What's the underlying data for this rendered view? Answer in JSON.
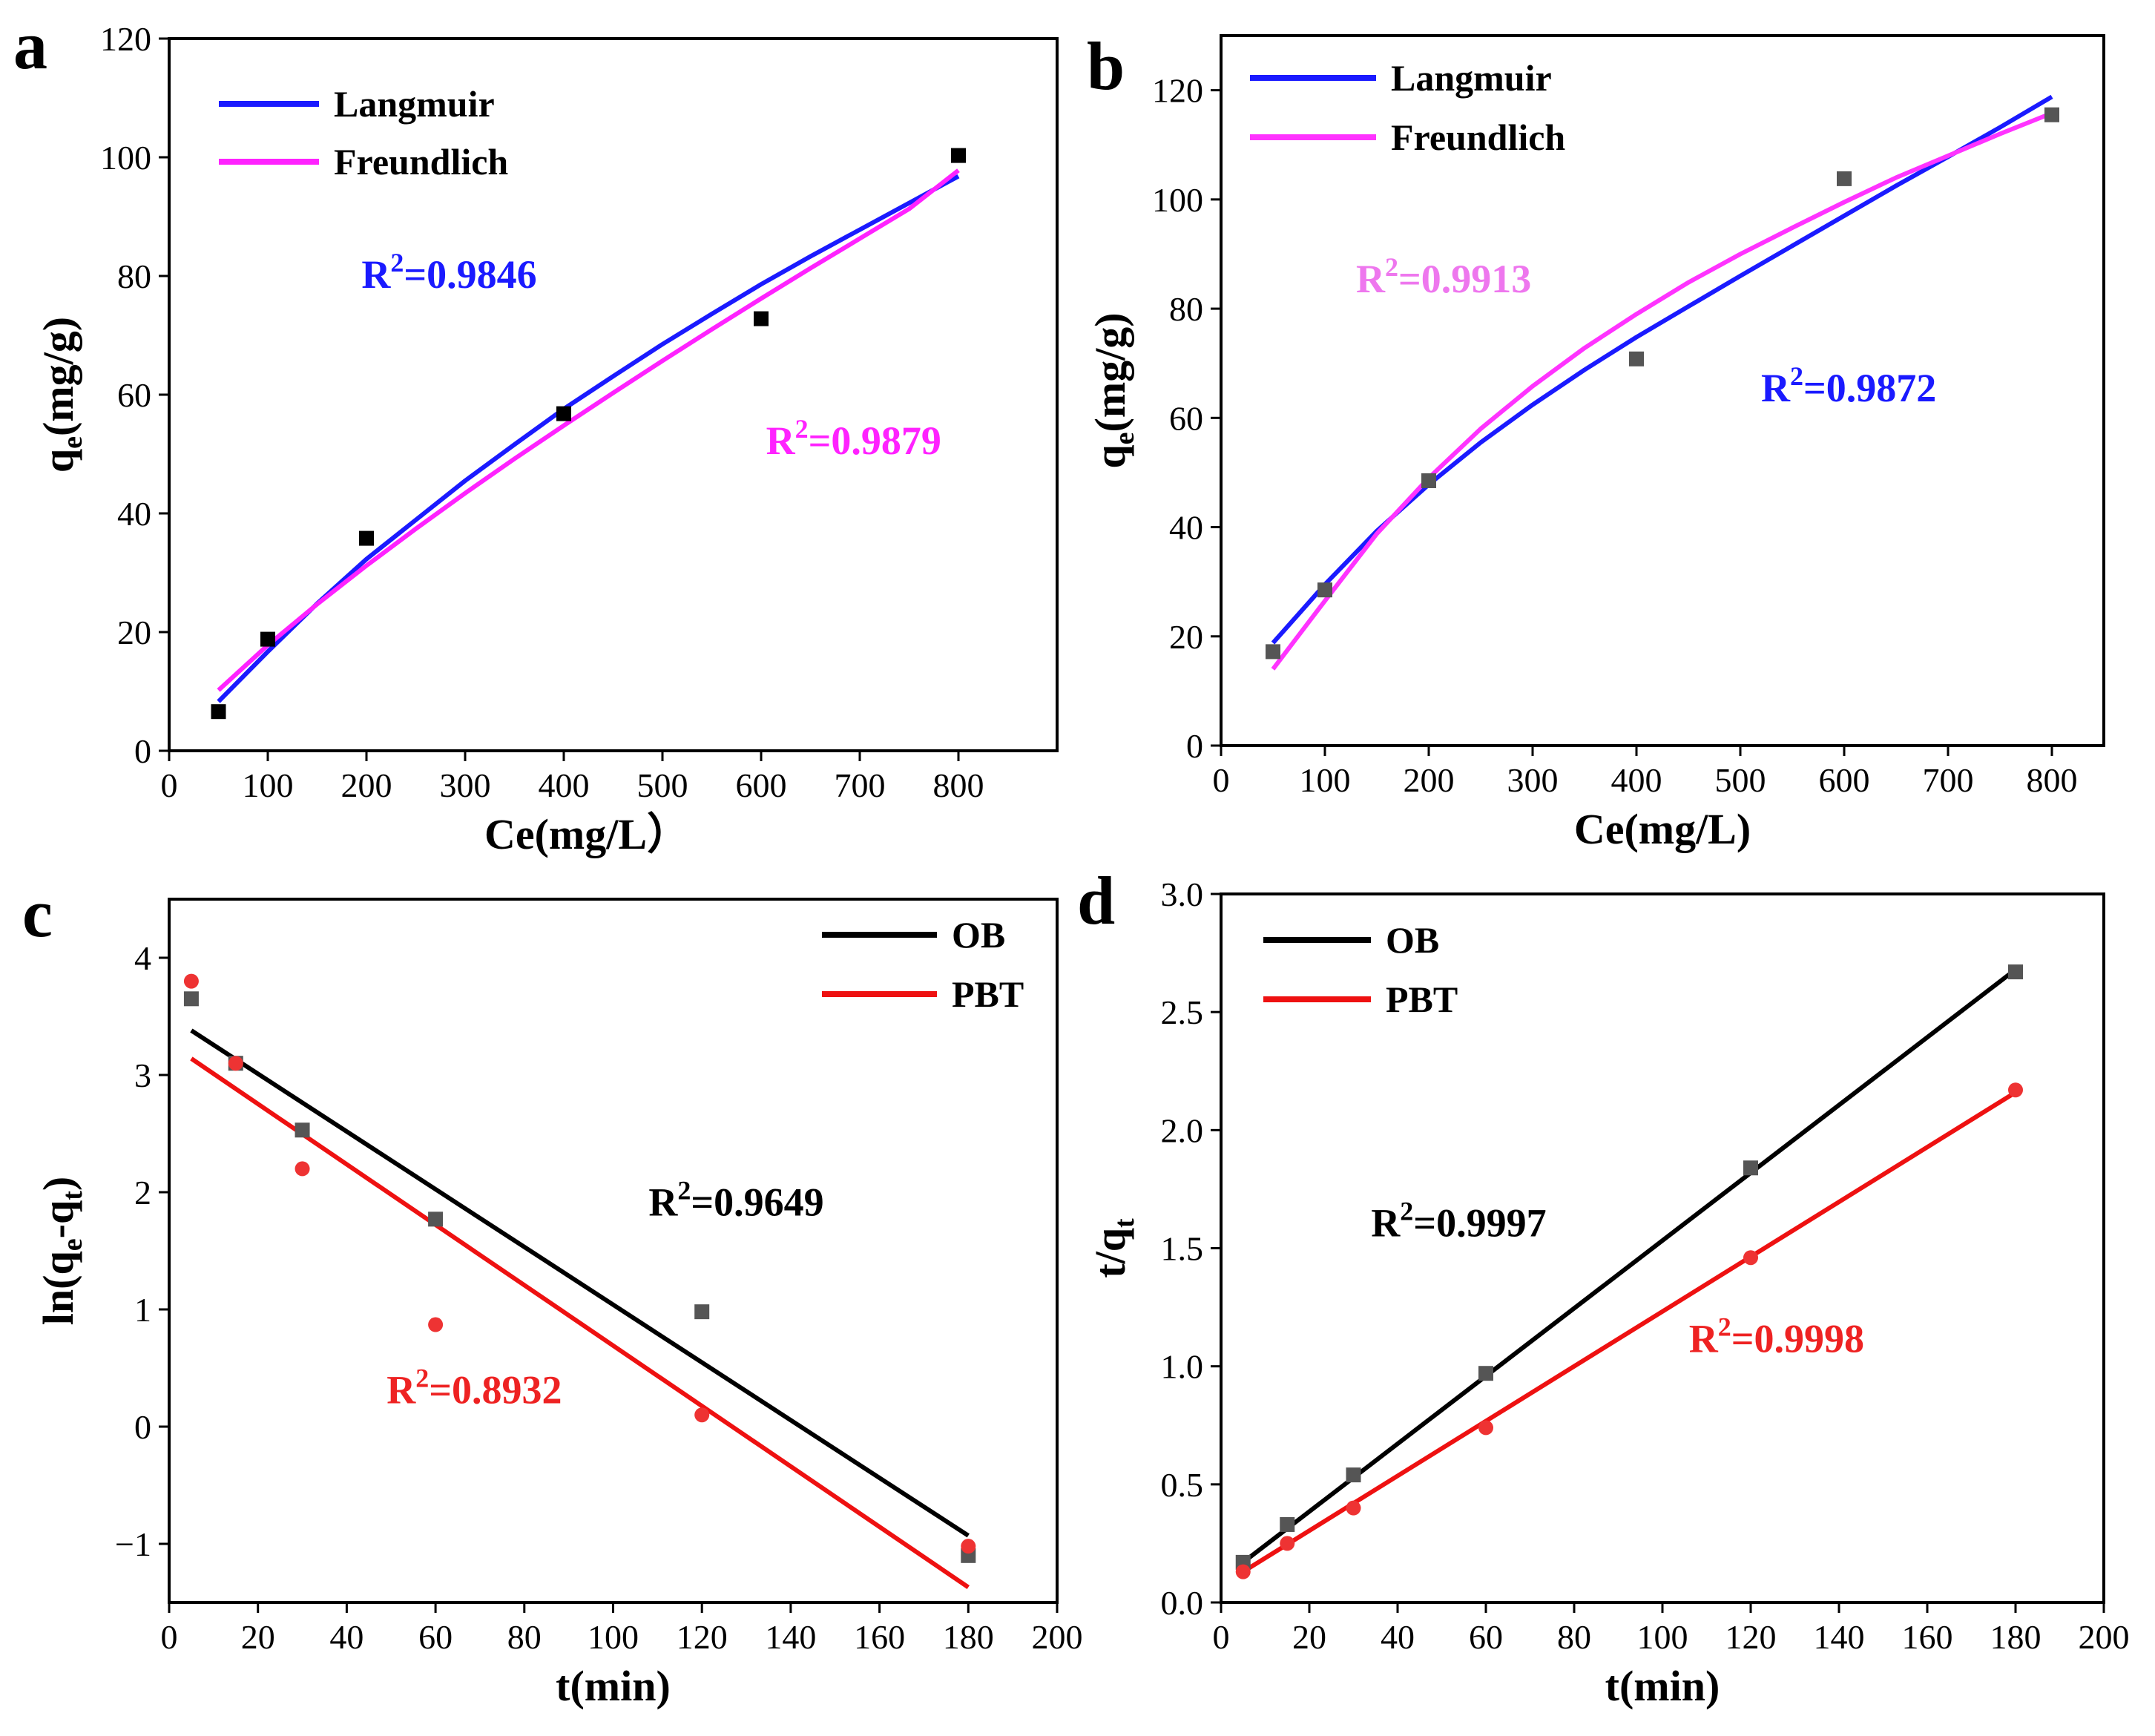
{
  "figure": {
    "panels": [
      "a",
      "b",
      "c",
      "d"
    ]
  },
  "chart_data": [
    {
      "id": "a",
      "panel_label": "a",
      "type": "scatter",
      "xlabel": "Ce(mg/L）",
      "ylabel_main": "q",
      "ylabel_sub": "e",
      "ylabel_rest": "(mg/g)",
      "xlim": [
        0,
        900
      ],
      "ylim": [
        0,
        120
      ],
      "xticks": [
        0,
        100,
        200,
        300,
        400,
        500,
        600,
        700,
        800
      ],
      "yticks": [
        0,
        20,
        40,
        60,
        80,
        100,
        120
      ],
      "legend_position": "top-left",
      "points": [
        {
          "name": "data",
          "color": "#000000",
          "marker": "square",
          "x": [
            50,
            100,
            200,
            400,
            600,
            800
          ],
          "y": [
            6.6,
            18.8,
            35.8,
            56.8,
            72.8,
            100.3
          ]
        }
      ],
      "series": [
        {
          "name": "Langmuir",
          "color": "#1a1aff",
          "x": [
            50,
            100,
            150,
            200,
            250,
            300,
            350,
            400,
            450,
            500,
            550,
            600,
            650,
            700,
            750,
            800
          ],
          "y": [
            8.3,
            16.7,
            24.8,
            32.3,
            38.9,
            45.5,
            51.6,
            57.6,
            63.1,
            68.5,
            73.6,
            78.6,
            83.3,
            87.8,
            92.3,
            96.8
          ]
        },
        {
          "name": "Freundlich",
          "color": "#ff22ff",
          "x": [
            50,
            100,
            150,
            200,
            250,
            300,
            350,
            400,
            450,
            500,
            550,
            600,
            650,
            700,
            750,
            800
          ],
          "y": [
            10.2,
            17.8,
            24.7,
            31.2,
            37.4,
            43.4,
            49.2,
            54.8,
            60.3,
            65.7,
            71.0,
            76.2,
            81.3,
            86.3,
            91.3,
            97.8
          ]
        }
      ],
      "annotations": [
        {
          "text": "R",
          "sup": "2",
          "rest": "=0.9846",
          "color": "#1a1aff",
          "x": 195,
          "y": 78
        },
        {
          "text": "R",
          "sup": "2",
          "rest": "=0.9879",
          "color": "#ff22ff",
          "x": 605,
          "y": 50
        }
      ]
    },
    {
      "id": "b",
      "panel_label": "b",
      "type": "scatter",
      "xlabel": "Ce(mg/L)",
      "ylabel_main": "q",
      "ylabel_sub": "e",
      "ylabel_rest": "(mg/g)",
      "xlim": [
        0,
        850
      ],
      "ylim": [
        0,
        130
      ],
      "xticks": [
        0,
        100,
        200,
        300,
        400,
        500,
        600,
        700,
        800
      ],
      "yticks": [
        0,
        20,
        40,
        60,
        80,
        100,
        120
      ],
      "legend_position": "top-left",
      "points": [
        {
          "name": "data",
          "color": "#555555",
          "marker": "square",
          "x": [
            50,
            100,
            200,
            400,
            600,
            800
          ],
          "y": [
            17.2,
            28.5,
            48.5,
            70.8,
            103.8,
            115.5
          ]
        }
      ],
      "series": [
        {
          "name": "Langmuir",
          "color": "#1a1aff",
          "x": [
            50,
            100,
            150,
            200,
            250,
            300,
            350,
            400,
            450,
            500,
            550,
            600,
            650,
            700,
            750,
            800
          ],
          "y": [
            18.8,
            29.5,
            39.3,
            47.8,
            55.5,
            62.4,
            68.8,
            74.8,
            80.4,
            86.0,
            91.5,
            97.0,
            102.5,
            107.8,
            113.2,
            118.8
          ]
        },
        {
          "name": "Freundlich",
          "color": "#ff33ff",
          "x": [
            50,
            100,
            150,
            200,
            250,
            300,
            350,
            400,
            450,
            500,
            550,
            600,
            650,
            700,
            750,
            800
          ],
          "y": [
            14.0,
            26.5,
            38.8,
            49.0,
            58.0,
            65.8,
            72.8,
            79.0,
            84.8,
            90.0,
            94.8,
            99.5,
            104.0,
            108.0,
            112.0,
            115.8
          ]
        }
      ],
      "annotations": [
        {
          "text": "R",
          "sup": "2",
          "rest": "=0.9913",
          "color": "#ee77ee",
          "x": 130,
          "y": 83
        },
        {
          "text": "R",
          "sup": "2",
          "rest": "=0.9872",
          "color": "#1a1aff",
          "x": 520,
          "y": 63
        }
      ]
    },
    {
      "id": "c",
      "panel_label": "c",
      "type": "scatter",
      "xlabel": "t(min)",
      "ylabel_main": "ln(q",
      "ylabel_sub": "e",
      "ylabel_mid": "-q",
      "ylabel_sub2": "t",
      "ylabel_rest": ")",
      "xlim": [
        0,
        200
      ],
      "ylim": [
        -1.5,
        4.5
      ],
      "xticks": [
        0,
        20,
        40,
        60,
        80,
        100,
        120,
        140,
        160,
        180,
        200
      ],
      "yticks": [
        -1,
        0,
        1,
        2,
        3,
        4
      ],
      "ytick_labels": [
        "−1",
        "0",
        "1",
        "2",
        "3",
        "4"
      ],
      "legend_position": "top-right",
      "points": [
        {
          "name": "OB data",
          "color": "#555555",
          "marker": "square",
          "x": [
            5,
            15,
            30,
            60,
            120,
            180
          ],
          "y": [
            3.65,
            3.1,
            2.53,
            1.77,
            0.98,
            -1.1
          ]
        },
        {
          "name": "PBT data",
          "color": "#ee3333",
          "marker": "circle",
          "x": [
            5,
            15,
            30,
            60,
            120,
            180
          ],
          "y": [
            3.8,
            3.1,
            2.2,
            0.87,
            0.1,
            -1.02
          ]
        }
      ],
      "series": [
        {
          "name": "OB",
          "color": "#000000",
          "x": [
            5,
            180
          ],
          "y": [
            3.38,
            -0.93
          ]
        },
        {
          "name": "PBT",
          "color": "#ee1111",
          "x": [
            5,
            180
          ],
          "y": [
            3.14,
            -1.37
          ]
        }
      ],
      "annotations": [
        {
          "text": "R",
          "sup": "2",
          "rest": "=0.9649",
          "color": "#000000",
          "x": 108,
          "y": 1.8
        },
        {
          "text": "R",
          "sup": "2",
          "rest": "=0.8932",
          "color": "#ee2222",
          "x": 49,
          "y": 0.2
        }
      ]
    },
    {
      "id": "d",
      "panel_label": "d",
      "type": "scatter",
      "xlabel": "t(min)",
      "ylabel_main": "t/q",
      "ylabel_sub": "t",
      "ylabel_rest": "",
      "xlim": [
        0,
        200
      ],
      "ylim": [
        0,
        3.0
      ],
      "xticks": [
        0,
        20,
        40,
        60,
        80,
        100,
        120,
        140,
        160,
        180,
        200
      ],
      "yticks": [
        0.0,
        0.5,
        1.0,
        1.5,
        2.0,
        2.5,
        3.0
      ],
      "ytick_labels": [
        "0.0",
        "0.5",
        "1.0",
        "1.5",
        "2.0",
        "2.5",
        "3.0"
      ],
      "legend_position": "top-left",
      "points": [
        {
          "name": "OB data",
          "color": "#555555",
          "marker": "square",
          "x": [
            5,
            15,
            30,
            60,
            120,
            180
          ],
          "y": [
            0.17,
            0.33,
            0.54,
            0.97,
            1.84,
            2.67
          ]
        },
        {
          "name": "PBT data",
          "color": "#ee3333",
          "marker": "circle",
          "x": [
            5,
            15,
            30,
            60,
            120,
            180
          ],
          "y": [
            0.13,
            0.25,
            0.4,
            0.74,
            1.46,
            2.17
          ]
        }
      ],
      "series": [
        {
          "name": "OB",
          "color": "#000000",
          "x": [
            5,
            180
          ],
          "y": [
            0.17,
            2.68
          ]
        },
        {
          "name": "PBT",
          "color": "#ee1111",
          "x": [
            5,
            180
          ],
          "y": [
            0.13,
            2.16
          ]
        }
      ],
      "annotations": [
        {
          "text": "R",
          "sup": "2",
          "rest": "=0.9997",
          "color": "#000000",
          "x": 34,
          "y": 1.55
        },
        {
          "text": "R",
          "sup": "2",
          "rest": "=0.9998",
          "color": "#ee2222",
          "x": 106,
          "y": 1.06
        }
      ]
    }
  ]
}
